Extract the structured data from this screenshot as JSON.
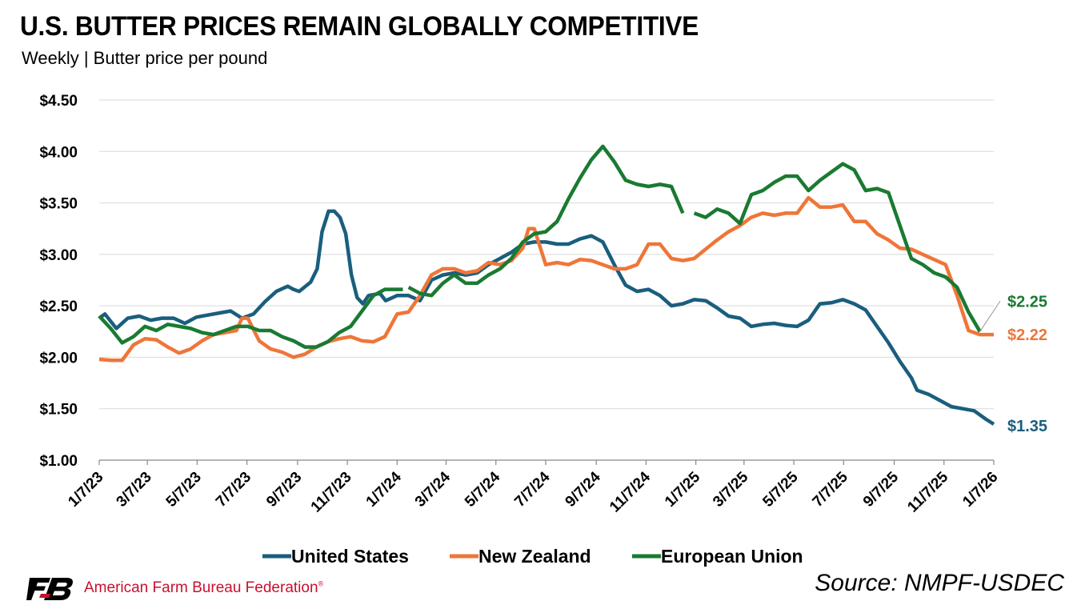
{
  "header": {
    "title": "U.S. BUTTER PRICES REMAIN GLOBALLY COMPETITIVE",
    "subtitle": "Weekly | Butter price per pound"
  },
  "footer": {
    "organization": "American Farm Bureau Federation",
    "trademark": "®",
    "source": "Source: NMPF-USDEC",
    "logo_icon": "farm-bureau-fb-logo"
  },
  "colors": {
    "united_states": "#1a5e7e",
    "new_zealand": "#ee7639",
    "european_union": "#1a7a32",
    "grid": "#d9d9d9",
    "axis": "#888888",
    "brand_red": "#c8102e"
  },
  "chart_data": {
    "type": "line",
    "title": "U.S. BUTTER PRICES REMAIN GLOBALLY COMPETITIVE",
    "subtitle": "Weekly | Butter price per pound",
    "xlabel": "",
    "ylabel": "",
    "x_start": "1/7/23",
    "x_end": "1/7/26",
    "x_ticks": [
      "1/7/23",
      "3/7/23",
      "5/7/23",
      "7/7/23",
      "9/7/23",
      "11/7/23",
      "1/7/24",
      "3/7/24",
      "5/7/24",
      "7/7/24",
      "9/7/24",
      "11/7/24",
      "1/7/25",
      "3/7/25",
      "5/7/25",
      "7/7/25",
      "9/7/25",
      "11/7/25",
      "1/7/26"
    ],
    "y_ticks": [
      "$1.00",
      "$1.50",
      "$2.00",
      "$2.50",
      "$3.00",
      "$3.50",
      "$4.00",
      "$4.50"
    ],
    "y_tick_values": [
      1.0,
      1.5,
      2.0,
      2.5,
      3.0,
      3.5,
      4.0,
      4.5
    ],
    "ylim": [
      1.0,
      4.5
    ],
    "grid": "horizontal",
    "legend_position": "bottom",
    "series": [
      {
        "name": "United States",
        "end_label": "$1.35",
        "points": [
          [
            "1/7/23",
            2.38
          ],
          [
            "1/14/23",
            2.42
          ],
          [
            "1/28/23",
            2.28
          ],
          [
            "2/11/23",
            2.38
          ],
          [
            "2/25/23",
            2.4
          ],
          [
            "3/11/23",
            2.36
          ],
          [
            "3/25/23",
            2.38
          ],
          [
            "4/8/23",
            2.38
          ],
          [
            "4/22/23",
            2.33
          ],
          [
            "5/6/23",
            2.39
          ],
          [
            "5/20/23",
            2.41
          ],
          [
            "6/3/23",
            2.43
          ],
          [
            "6/17/23",
            2.45
          ],
          [
            "7/1/23",
            2.38
          ],
          [
            "7/15/23",
            2.42
          ],
          [
            "7/29/23",
            2.54
          ],
          [
            "8/12/23",
            2.64
          ],
          [
            "8/26/23",
            2.69
          ],
          [
            "9/2/23",
            2.66
          ],
          [
            "9/9/23",
            2.64
          ],
          [
            "9/23/23",
            2.73
          ],
          [
            "10/1/23",
            2.86
          ],
          [
            "10/7/23",
            3.22
          ],
          [
            "10/15/23",
            3.42
          ],
          [
            "10/22/23",
            3.42
          ],
          [
            "10/29/23",
            3.36
          ],
          [
            "11/5/23",
            3.2
          ],
          [
            "11/12/23",
            2.8
          ],
          [
            "11/19/23",
            2.58
          ],
          [
            "11/26/23",
            2.52
          ],
          [
            "12/3/23",
            2.6
          ],
          [
            "12/17/23",
            2.62
          ],
          [
            "12/24/23",
            2.55
          ],
          [
            "1/7/24",
            2.6
          ],
          [
            "1/21/24",
            2.6
          ],
          [
            "2/4/24",
            2.55
          ],
          [
            "2/18/24",
            2.75
          ],
          [
            "3/3/24",
            2.8
          ],
          [
            "3/17/24",
            2.82
          ],
          [
            "3/31/24",
            2.8
          ],
          [
            "4/14/24",
            2.82
          ],
          [
            "4/28/24",
            2.9
          ],
          [
            "5/12/24",
            2.96
          ],
          [
            "5/26/24",
            3.02
          ],
          [
            "6/9/24",
            3.1
          ],
          [
            "6/23/24",
            3.12
          ],
          [
            "7/7/24",
            3.12
          ],
          [
            "7/21/24",
            3.1
          ],
          [
            "8/4/24",
            3.1
          ],
          [
            "8/18/24",
            3.15
          ],
          [
            "9/1/24",
            3.18
          ],
          [
            "9/15/24",
            3.12
          ],
          [
            "9/29/24",
            2.9
          ],
          [
            "10/13/24",
            2.7
          ],
          [
            "10/27/24",
            2.64
          ],
          [
            "11/10/24",
            2.66
          ],
          [
            "11/24/24",
            2.6
          ],
          [
            "12/8/24",
            2.5
          ],
          [
            "12/22/24",
            2.52
          ],
          [
            "1/5/25",
            2.56
          ],
          [
            "1/19/25",
            2.55
          ],
          [
            "2/2/25",
            2.48
          ],
          [
            "2/16/25",
            2.4
          ],
          [
            "3/2/25",
            2.38
          ],
          [
            "3/16/25",
            2.3
          ],
          [
            "3/30/25",
            2.32
          ],
          [
            "4/13/25",
            2.33
          ],
          [
            "4/27/25",
            2.31
          ],
          [
            "5/11/25",
            2.3
          ],
          [
            "5/25/25",
            2.36
          ],
          [
            "6/8/25",
            2.52
          ],
          [
            "6/22/25",
            2.53
          ],
          [
            "7/6/25",
            2.56
          ],
          [
            "7/20/25",
            2.52
          ],
          [
            "8/3/25",
            2.46
          ],
          [
            "8/17/25",
            2.3
          ],
          [
            "8/31/25",
            2.14
          ],
          [
            "9/14/25",
            1.96
          ],
          [
            "9/28/25",
            1.8
          ],
          [
            "10/5/25",
            1.68
          ],
          [
            "10/19/25",
            1.64
          ],
          [
            "11/2/25",
            1.58
          ],
          [
            "11/16/25",
            1.52
          ],
          [
            "11/30/25",
            1.5
          ],
          [
            "12/14/25",
            1.48
          ],
          [
            "12/28/25",
            1.4
          ],
          [
            "1/7/26",
            1.35
          ]
        ]
      },
      {
        "name": "New Zealand",
        "end_label": "$2.22",
        "points": [
          [
            "1/7/23",
            1.98
          ],
          [
            "1/21/23",
            1.97
          ],
          [
            "2/4/23",
            1.97
          ],
          [
            "2/18/23",
            2.12
          ],
          [
            "3/4/23",
            2.18
          ],
          [
            "3/18/23",
            2.17
          ],
          [
            "4/1/23",
            2.1
          ],
          [
            "4/15/23",
            2.04
          ],
          [
            "4/29/23",
            2.08
          ],
          [
            "5/13/23",
            2.16
          ],
          [
            "5/27/23",
            2.22
          ],
          [
            "6/10/23",
            2.24
          ],
          [
            "6/24/23",
            2.26
          ],
          [
            "7/1/23",
            2.38
          ],
          [
            "7/8/23",
            2.38
          ],
          [
            "7/22/23",
            2.16
          ],
          [
            "8/5/23",
            2.08
          ],
          [
            "8/19/23",
            2.05
          ],
          [
            "9/2/23",
            2.0
          ],
          [
            "9/16/23",
            2.03
          ],
          [
            "9/30/23",
            2.1
          ],
          [
            "10/14/23",
            2.15
          ],
          [
            "10/28/23",
            2.18
          ],
          [
            "11/11/23",
            2.2
          ],
          [
            "11/25/23",
            2.16
          ],
          [
            "12/9/23",
            2.15
          ],
          [
            "12/23/23",
            2.2
          ],
          [
            "1/7/24",
            2.42
          ],
          [
            "1/21/24",
            2.44
          ],
          [
            "2/4/24",
            2.6
          ],
          [
            "2/18/24",
            2.8
          ],
          [
            "3/3/24",
            2.86
          ],
          [
            "3/17/24",
            2.86
          ],
          [
            "3/31/24",
            2.82
          ],
          [
            "4/14/24",
            2.84
          ],
          [
            "4/28/24",
            2.92
          ],
          [
            "5/12/24",
            2.9
          ],
          [
            "5/26/24",
            2.94
          ],
          [
            "6/9/24",
            3.06
          ],
          [
            "6/16/24",
            3.25
          ],
          [
            "6/23/24",
            3.25
          ],
          [
            "7/7/24",
            2.9
          ],
          [
            "7/21/24",
            2.92
          ],
          [
            "8/4/24",
            2.9
          ],
          [
            "8/18/24",
            2.95
          ],
          [
            "9/1/24",
            2.94
          ],
          [
            "9/15/24",
            2.9
          ],
          [
            "9/29/24",
            2.86
          ],
          [
            "10/13/24",
            2.86
          ],
          [
            "10/27/24",
            2.9
          ],
          [
            "11/10/24",
            3.1
          ],
          [
            "11/24/24",
            3.1
          ],
          [
            "12/8/24",
            2.96
          ],
          [
            "12/22/24",
            2.94
          ],
          [
            "1/5/25",
            2.96
          ],
          [
            "1/19/25",
            3.05
          ],
          [
            "2/2/25",
            3.14
          ],
          [
            "2/16/25",
            3.22
          ],
          [
            "3/2/25",
            3.28
          ],
          [
            "3/16/25",
            3.36
          ],
          [
            "3/30/25",
            3.4
          ],
          [
            "4/13/25",
            3.38
          ],
          [
            "4/27/25",
            3.4
          ],
          [
            "5/11/25",
            3.4
          ],
          [
            "5/25/25",
            3.55
          ],
          [
            "6/8/25",
            3.46
          ],
          [
            "6/22/25",
            3.46
          ],
          [
            "7/6/25",
            3.48
          ],
          [
            "7/20/25",
            3.32
          ],
          [
            "8/3/25",
            3.32
          ],
          [
            "8/17/25",
            3.2
          ],
          [
            "8/31/25",
            3.14
          ],
          [
            "9/14/25",
            3.06
          ],
          [
            "9/28/25",
            3.05
          ],
          [
            "10/12/25",
            3.0
          ],
          [
            "10/26/25",
            2.95
          ],
          [
            "11/9/25",
            2.9
          ],
          [
            "11/23/25",
            2.6
          ],
          [
            "12/7/25",
            2.26
          ],
          [
            "12/21/25",
            2.22
          ],
          [
            "1/7/26",
            2.22
          ]
        ]
      },
      {
        "name": "European Union",
        "end_label": "$2.25",
        "segments": [
          [
            [
              "1/7/23",
              2.4
            ],
            [
              "1/21/23",
              2.28
            ],
            [
              "2/4/23",
              2.14
            ],
            [
              "2/18/23",
              2.2
            ],
            [
              "3/4/23",
              2.3
            ],
            [
              "3/18/23",
              2.26
            ],
            [
              "4/1/23",
              2.32
            ],
            [
              "4/15/23",
              2.3
            ],
            [
              "4/29/23",
              2.28
            ],
            [
              "5/13/23",
              2.24
            ],
            [
              "5/27/23",
              2.22
            ],
            [
              "6/10/23",
              2.26
            ],
            [
              "6/24/23",
              2.3
            ],
            [
              "7/8/23",
              2.3
            ],
            [
              "7/22/23",
              2.26
            ],
            [
              "8/5/23",
              2.26
            ],
            [
              "8/19/23",
              2.2
            ],
            [
              "9/2/23",
              2.16
            ],
            [
              "9/16/23",
              2.1
            ],
            [
              "9/30/23",
              2.1
            ],
            [
              "10/14/23",
              2.15
            ],
            [
              "10/28/23",
              2.24
            ],
            [
              "11/11/23",
              2.3
            ],
            [
              "11/25/23",
              2.45
            ],
            [
              "12/9/23",
              2.6
            ],
            [
              "12/23/23",
              2.66
            ],
            [
              "1/7/24",
              2.66
            ],
            [
              "1/14/24",
              2.66
            ]
          ],
          [
            [
              "1/21/24",
              2.68
            ],
            [
              "2/4/24",
              2.62
            ],
            [
              "2/18/24",
              2.6
            ],
            [
              "3/3/24",
              2.72
            ],
            [
              "3/17/24",
              2.8
            ],
            [
              "3/31/24",
              2.72
            ],
            [
              "4/14/24",
              2.72
            ],
            [
              "4/28/24",
              2.8
            ],
            [
              "5/12/24",
              2.86
            ],
            [
              "5/26/24",
              2.96
            ],
            [
              "6/9/24",
              3.12
            ],
            [
              "6/23/24",
              3.2
            ],
            [
              "7/7/24",
              3.22
            ],
            [
              "7/21/24",
              3.32
            ],
            [
              "8/4/24",
              3.54
            ],
            [
              "8/18/24",
              3.74
            ],
            [
              "9/1/24",
              3.92
            ],
            [
              "9/15/24",
              4.05
            ],
            [
              "9/29/24",
              3.9
            ],
            [
              "10/13/24",
              3.72
            ],
            [
              "10/27/24",
              3.68
            ],
            [
              "11/10/24",
              3.66
            ],
            [
              "11/24/24",
              3.68
            ],
            [
              "12/8/24",
              3.66
            ],
            [
              "12/22/24",
              3.4
            ]
          ],
          [
            [
              "1/5/25",
              3.4
            ],
            [
              "1/19/25",
              3.36
            ],
            [
              "2/2/25",
              3.44
            ],
            [
              "2/16/25",
              3.4
            ],
            [
              "3/2/25",
              3.3
            ],
            [
              "3/16/25",
              3.58
            ],
            [
              "3/30/25",
              3.62
            ],
            [
              "4/13/25",
              3.7
            ],
            [
              "4/27/25",
              3.76
            ],
            [
              "5/11/25",
              3.76
            ],
            [
              "5/25/25",
              3.62
            ],
            [
              "6/8/25",
              3.72
            ],
            [
              "6/22/25",
              3.8
            ],
            [
              "7/6/25",
              3.88
            ],
            [
              "7/20/25",
              3.82
            ],
            [
              "8/3/25",
              3.62
            ],
            [
              "8/17/25",
              3.64
            ],
            [
              "8/31/25",
              3.6
            ],
            [
              "9/14/25",
              3.28
            ],
            [
              "9/28/25",
              2.96
            ],
            [
              "10/12/25",
              2.9
            ],
            [
              "10/26/25",
              2.82
            ],
            [
              "11/9/25",
              2.78
            ],
            [
              "11/23/25",
              2.68
            ],
            [
              "12/7/25",
              2.44
            ],
            [
              "12/21/25",
              2.25
            ]
          ]
        ]
      }
    ]
  }
}
